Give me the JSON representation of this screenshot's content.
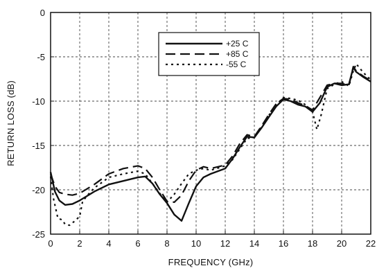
{
  "chart_data": {
    "type": "line",
    "title": "",
    "xlabel": "FREQUENCY (GHz)",
    "ylabel": "RETURN LOSS (dB)",
    "xlim": [
      0,
      22
    ],
    "ylim": [
      -25,
      0
    ],
    "xticks": [
      "0",
      "2",
      "4",
      "6",
      "8",
      "10",
      "12",
      "14",
      "16",
      "18",
      "20",
      "22"
    ],
    "yticks": [
      "0",
      "-5",
      "-10",
      "-15",
      "-20",
      "-25"
    ],
    "grid": true,
    "legend_position": "top-center",
    "series": [
      {
        "name": "+25 C",
        "style": "solid",
        "color": "#111111",
        "x": [
          0.0,
          0.3,
          0.6,
          1.0,
          1.5,
          2.0,
          3.0,
          4.0,
          5.0,
          6.0,
          6.5,
          7.0,
          7.5,
          8.0,
          8.5,
          9.0,
          9.5,
          10.0,
          10.5,
          11.0,
          12.0,
          12.5,
          13.0,
          13.5,
          14.0,
          14.5,
          15.0,
          15.5,
          16.0,
          16.5,
          17.0,
          17.5,
          18.0,
          18.5,
          19.0,
          19.5,
          20.0,
          20.5,
          20.8,
          21.0,
          21.5,
          22.0
        ],
        "y": [
          -18.0,
          -20.2,
          -21.2,
          -21.7,
          -21.6,
          -21.2,
          -20.2,
          -19.4,
          -19.0,
          -18.6,
          -18.5,
          -19.3,
          -20.5,
          -21.5,
          -22.8,
          -23.5,
          -21.5,
          -19.6,
          -18.6,
          -18.2,
          -17.6,
          -16.5,
          -15.2,
          -14.0,
          -14.1,
          -13.0,
          -11.8,
          -10.6,
          -9.8,
          -10.0,
          -10.4,
          -10.6,
          -11.2,
          -10.2,
          -8.4,
          -8.0,
          -8.2,
          -8.1,
          -6.2,
          -6.7,
          -7.3,
          -7.8
        ]
      },
      {
        "name": "+85 C",
        "style": "dashed",
        "color": "#111111",
        "x": [
          0.0,
          0.3,
          0.6,
          1.0,
          1.5,
          2.0,
          3.0,
          4.0,
          5.0,
          6.0,
          6.5,
          7.0,
          7.5,
          8.0,
          8.5,
          9.0,
          9.5,
          10.0,
          10.5,
          11.0,
          12.0,
          12.5,
          13.0,
          13.5,
          14.0,
          14.5,
          15.0,
          15.5,
          16.0,
          16.5,
          17.0,
          17.5,
          18.0,
          18.5,
          19.0,
          19.5,
          20.0,
          20.5,
          20.8,
          21.0,
          21.5,
          22.0
        ],
        "y": [
          -18.2,
          -19.6,
          -20.3,
          -20.5,
          -20.6,
          -20.4,
          -19.4,
          -18.2,
          -17.6,
          -17.3,
          -17.6,
          -18.6,
          -20.0,
          -21.3,
          -21.4,
          -20.6,
          -19.0,
          -17.8,
          -17.4,
          -17.6,
          -17.2,
          -16.2,
          -14.8,
          -13.8,
          -14.0,
          -12.8,
          -11.5,
          -10.3,
          -9.7,
          -9.8,
          -10.2,
          -10.5,
          -11.0,
          -9.6,
          -8.2,
          -8.0,
          -8.0,
          -8.2,
          -6.1,
          -6.6,
          -7.2,
          -7.7
        ]
      },
      {
        "name": "-55 C",
        "style": "dotted",
        "color": "#111111",
        "x": [
          0.0,
          0.2,
          0.5,
          0.8,
          1.0,
          1.3,
          1.6,
          2.0,
          2.2,
          2.6,
          3.0,
          4.0,
          5.0,
          6.0,
          6.5,
          7.0,
          7.5,
          8.0,
          8.5,
          9.0,
          9.5,
          10.0,
          10.5,
          11.0,
          12.0,
          12.5,
          13.0,
          13.5,
          14.0,
          14.5,
          15.0,
          15.5,
          16.0,
          16.5,
          17.0,
          17.5,
          18.0,
          18.3,
          18.6,
          19.0,
          19.5,
          20.0,
          20.5,
          20.8,
          21.0,
          21.5,
          22.0
        ],
        "y": [
          -18.5,
          -21.0,
          -23.2,
          -23.4,
          -23.9,
          -24.0,
          -23.6,
          -23.0,
          -21.3,
          -20.5,
          -19.8,
          -18.6,
          -18.2,
          -17.9,
          -18.2,
          -19.3,
          -20.4,
          -21.4,
          -20.5,
          -19.3,
          -18.2,
          -17.8,
          -17.6,
          -17.8,
          -17.3,
          -16.6,
          -15.4,
          -14.2,
          -14.1,
          -12.9,
          -11.6,
          -10.4,
          -9.6,
          -9.7,
          -9.9,
          -10.4,
          -11.2,
          -13.2,
          -11.5,
          -8.6,
          -8.1,
          -7.8,
          -8.3,
          -6.6,
          -5.8,
          -6.8,
          -7.6
        ]
      }
    ]
  }
}
